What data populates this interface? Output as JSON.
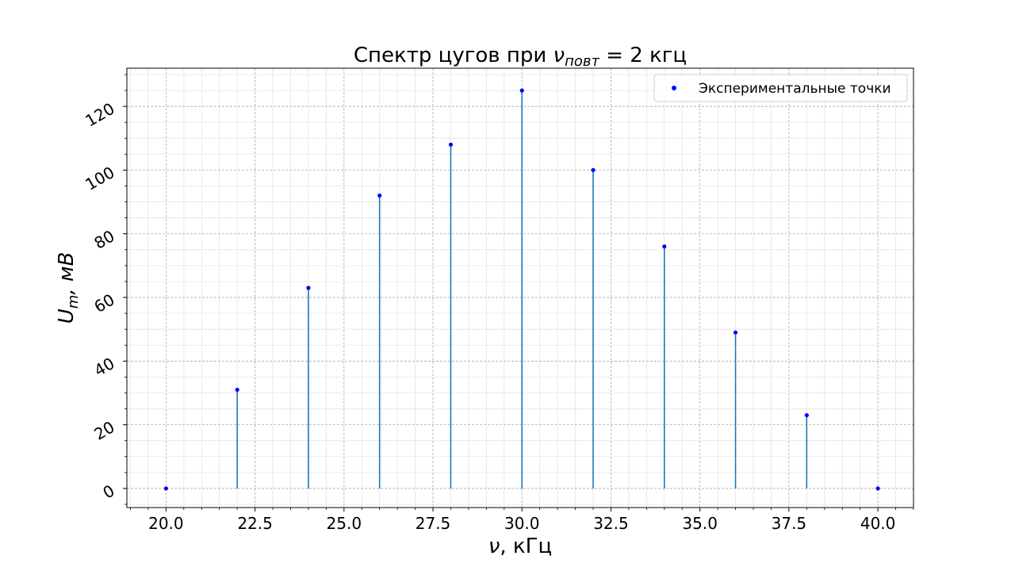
{
  "chart_data": {
    "type": "stem",
    "title": "Спектр цугов при νповт = 2 кгц",
    "title_main": "Спектр цугов при ",
    "title_var": "ν",
    "title_sub": "повт",
    "title_tail": " = 2 кгц",
    "xlabel": "ν, кГц",
    "xlabel_var": "ν",
    "xlabel_tail": ", кГц",
    "ylabel": "Um, мВ",
    "ylabel_var": "U",
    "ylabel_sub": "m",
    "ylabel_tail": ", мВ",
    "xlim": [
      18.9,
      41.0
    ],
    "ylim": [
      -6,
      132
    ],
    "xticks": [
      20.0,
      22.5,
      25.0,
      27.5,
      30.0,
      32.5,
      35.0,
      37.5,
      40.0
    ],
    "xtick_labels": [
      "20.0",
      "22.5",
      "25.0",
      "27.5",
      "30.0",
      "32.5",
      "35.0",
      "37.5",
      "40.0"
    ],
    "yticks": [
      0,
      20,
      40,
      60,
      80,
      100,
      120
    ],
    "ytick_labels": [
      "0",
      "20",
      "40",
      "60",
      "80",
      "100",
      "120"
    ],
    "grid": true,
    "minor_grid": true,
    "legend_position": "top-right",
    "series": [
      {
        "name": "Экспериментальные точки",
        "marker_color": "#0000ff",
        "stem_color": "#1f77b4",
        "x": [
          20,
          22,
          24,
          26,
          28,
          30,
          32,
          34,
          36,
          38,
          40
        ],
        "y": [
          0,
          31,
          63,
          92,
          108,
          125,
          100,
          76,
          49,
          23,
          0
        ]
      }
    ]
  }
}
